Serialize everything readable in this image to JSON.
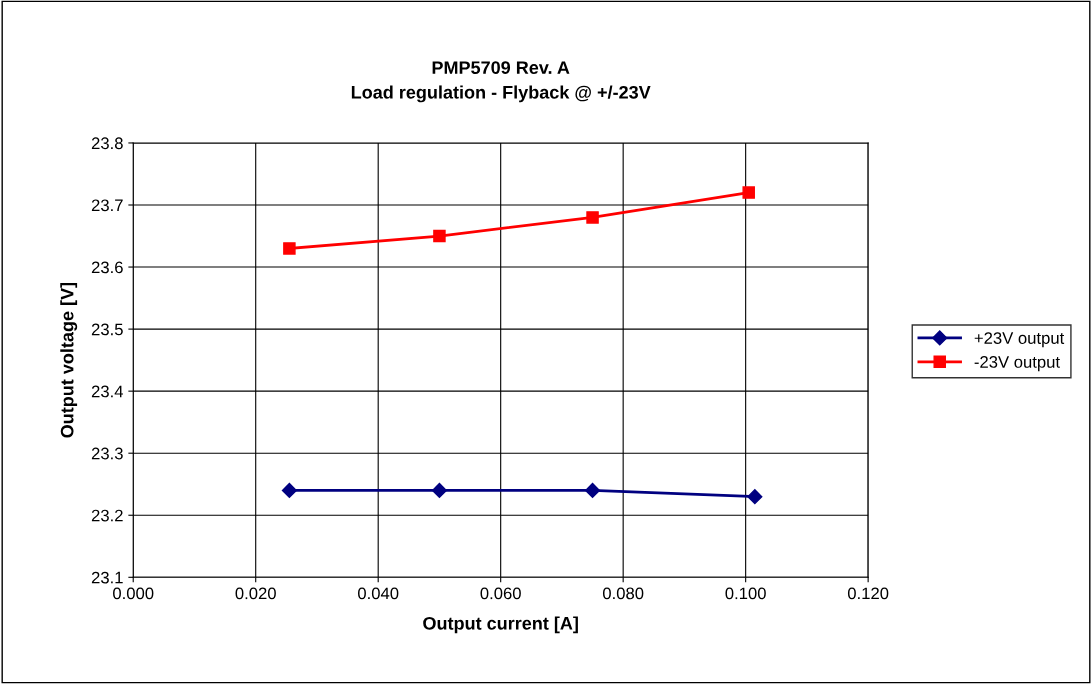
{
  "chart_data": {
    "type": "line",
    "title": "PMP5709 Rev. A\nLoad regulation - Flyback @ +/-23V",
    "xlabel": "Output current [A]",
    "ylabel": "Output voltage [V]",
    "series": [
      {
        "name": "+23V output",
        "color": "#000080",
        "marker": "diamond",
        "x": [
          0.0255,
          0.05,
          0.075,
          0.1015
        ],
        "values": [
          23.24,
          23.24,
          23.24,
          23.23
        ]
      },
      {
        "name": "-23V output",
        "color": "#ff0000",
        "marker": "square",
        "x": [
          0.0255,
          0.05,
          0.075,
          0.1005
        ],
        "values": [
          23.63,
          23.65,
          23.68,
          23.72
        ]
      }
    ],
    "xlim": [
      0,
      0.12
    ],
    "xticks": [
      {
        "value": 0,
        "label": "0.000"
      },
      {
        "value": 0.02,
        "label": "0.020"
      },
      {
        "value": 0.04,
        "label": "0.040"
      },
      {
        "value": 0.06,
        "label": "0.060"
      },
      {
        "value": 0.08,
        "label": "0.080"
      },
      {
        "value": 0.1,
        "label": "0.100"
      },
      {
        "value": 0.12,
        "label": "0.120"
      }
    ],
    "ylim": [
      23.1,
      23.8
    ],
    "yticks": [
      23.1,
      23.2,
      23.3,
      23.4,
      23.5,
      23.6,
      23.7,
      23.8
    ],
    "grid": true,
    "legend": "right",
    "line_style": "solid"
  }
}
